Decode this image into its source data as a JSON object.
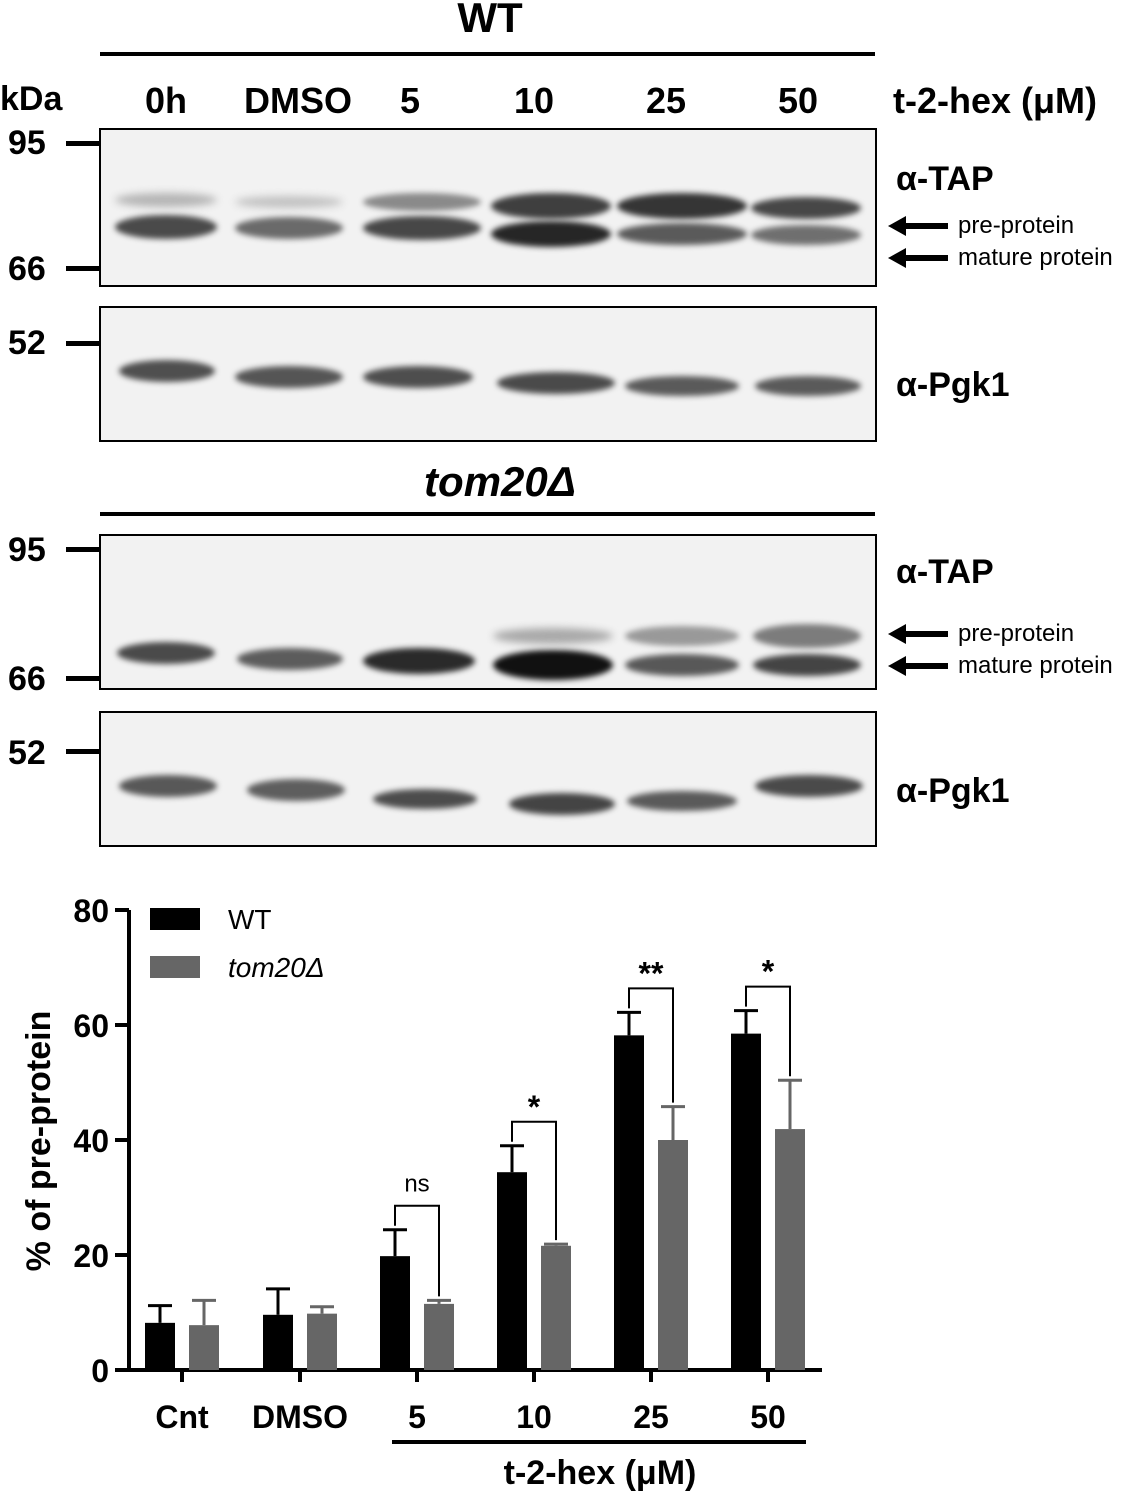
{
  "wt_panel": {
    "title": "WT",
    "kda_label": "kDa",
    "lanes": [
      "0h",
      "DMSO",
      "5",
      "10",
      "25",
      "50"
    ],
    "treatment_label": "t-2-hex (μM)",
    "tap_markers": [
      "95",
      "66"
    ],
    "pgk_marker": "52",
    "tap_antibody": "α-TAP",
    "pgk_antibody": "α-Pgk1",
    "pre_label": "pre-protein",
    "mature_label": "mature protein"
  },
  "tom_panel": {
    "title": "tom20Δ",
    "tap_markers": [
      "95",
      "66"
    ],
    "pgk_marker": "52",
    "tap_antibody": "α-TAP",
    "pgk_antibody": "α-Pgk1",
    "pre_label": "pre-protein",
    "mature_label": "mature protein"
  },
  "colors": {
    "wt": "#000000",
    "tom20": "#666666"
  },
  "chart_data": {
    "type": "bar",
    "ylabel": "% of pre-protein",
    "xlabel": "t-2-hex (μM)",
    "categories": [
      "Cnt",
      "DMSO",
      "5",
      "10",
      "25",
      "50"
    ],
    "ylim": [
      0,
      80
    ],
    "yticks": [
      0,
      20,
      40,
      60,
      80
    ],
    "legend_position": "top-left",
    "series": [
      {
        "name": "WT",
        "values": [
          8.2,
          9.6,
          19.8,
          34.4,
          58.2,
          58.5
        ],
        "errors": [
          3.0,
          4.5,
          4.6,
          4.6,
          4.0,
          4.0
        ]
      },
      {
        "name": "tom20Δ",
        "values": [
          7.8,
          9.8,
          11.5,
          21.6,
          40.0,
          41.9
        ],
        "errors": [
          4.3,
          1.2,
          0.6,
          0.3,
          5.8,
          8.5
        ]
      }
    ],
    "significance": [
      {
        "category": "5",
        "label": "ns"
      },
      {
        "category": "10",
        "label": "*"
      },
      {
        "category": "25",
        "label": "**"
      },
      {
        "category": "50",
        "label": "*"
      }
    ]
  }
}
